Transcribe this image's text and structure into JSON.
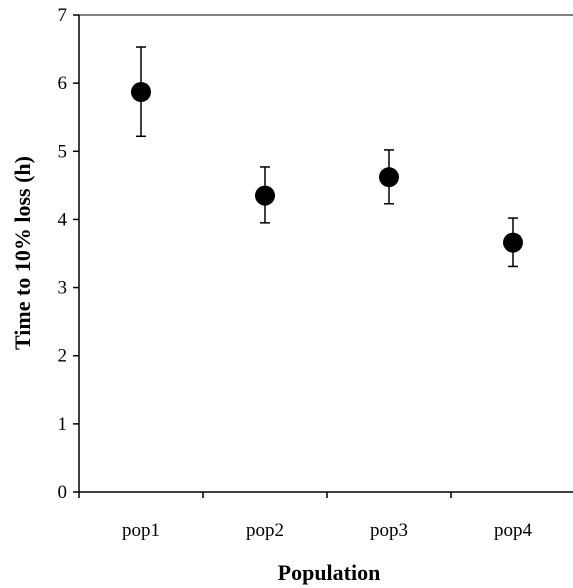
{
  "chart_data": {
    "type": "scatter",
    "title": "",
    "xlabel": "Population",
    "ylabel": "Time to 10% loss (h)",
    "categories": [
      "pop1",
      "pop2",
      "pop3",
      "pop4"
    ],
    "series": [
      {
        "values": [
          5.87,
          4.35,
          4.62,
          3.66
        ],
        "error_lower": [
          5.22,
          3.95,
          4.23,
          3.31
        ],
        "error_upper": [
          6.53,
          4.77,
          5.02,
          4.02
        ]
      }
    ],
    "ylim": [
      0,
      7
    ],
    "yticks": [
      0,
      1,
      2,
      3,
      4,
      5,
      6,
      7
    ],
    "grid": false,
    "legend": "none",
    "marker_color": "#000000"
  }
}
